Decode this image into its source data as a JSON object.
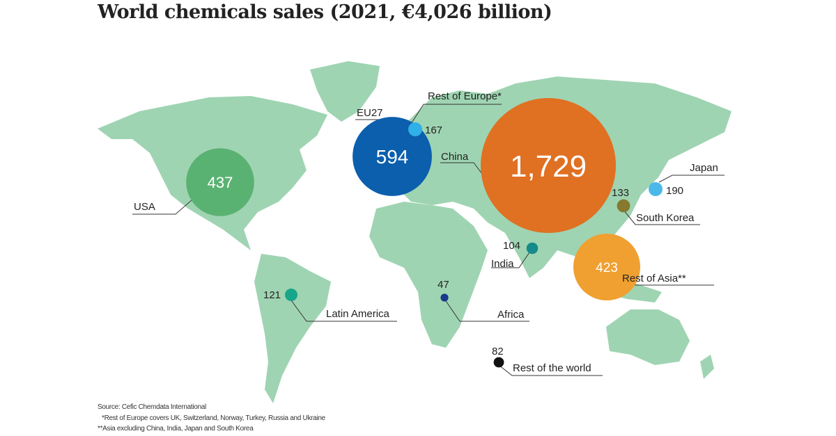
{
  "title": "World chemicals sales (2021, €4,026 billion)",
  "footnotes": {
    "source": "Source: Cefic Chemdata International",
    "note1": "*Rest of Europe covers UK, Switzerland, Norway, Turkey, Russia and Ukraine",
    "note2": "**Asia excluding China, India, Japan and South Korea"
  },
  "chart_data": {
    "type": "bubble-map",
    "title": "World chemicals sales (2021, €4,026 billion)",
    "unit": "€ billion",
    "regions": [
      {
        "name": "China",
        "value": 1729,
        "label": "1,729",
        "color": "#e07022"
      },
      {
        "name": "EU27",
        "value": 594,
        "label": "594",
        "color": "#0b5fad"
      },
      {
        "name": "USA",
        "value": 437,
        "label": "437",
        "color": "#5ab272"
      },
      {
        "name": "Rest of Asia**",
        "value": 423,
        "label": "423",
        "color": "#f0a030"
      },
      {
        "name": "Japan",
        "value": 190,
        "label": "190",
        "color": "#4ab8e8"
      },
      {
        "name": "Rest of Europe*",
        "value": 167,
        "label": "167",
        "color": "#2fb0e6"
      },
      {
        "name": "South Korea",
        "value": 133,
        "label": "133",
        "color": "#857a30"
      },
      {
        "name": "Latin America",
        "value": 121,
        "label": "121",
        "color": "#17a68a"
      },
      {
        "name": "India",
        "value": 104,
        "label": "104",
        "color": "#178a8a"
      },
      {
        "name": "Rest of the world",
        "value": 82,
        "label": "82",
        "color": "#111111"
      },
      {
        "name": "Africa",
        "value": 47,
        "label": "47",
        "color": "#1a3a8a"
      }
    ],
    "land_color": "#9fd4b2"
  }
}
